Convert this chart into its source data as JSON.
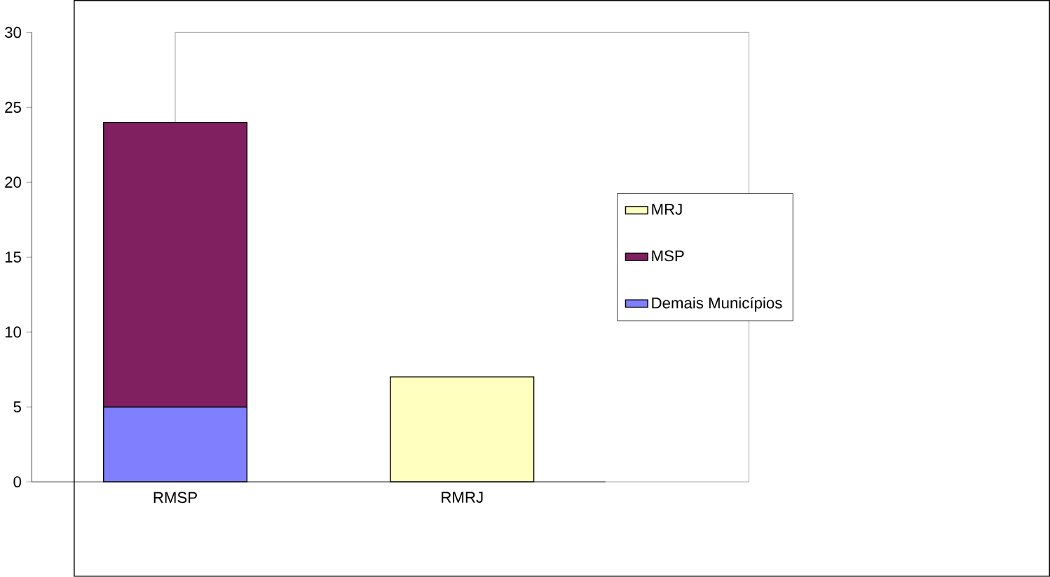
{
  "chart_data": {
    "type": "bar",
    "stacked": true,
    "categories": [
      "RMSP",
      "RMRJ"
    ],
    "series": [
      {
        "name": "Demais Municípios",
        "color": "#8080ff",
        "values": [
          5,
          null
        ]
      },
      {
        "name": "MSP",
        "color": "#802060",
        "values": [
          19,
          null
        ]
      },
      {
        "name": "MRJ",
        "color": "#ffffc0",
        "values": [
          null,
          7
        ]
      }
    ],
    "ylim": [
      0,
      30
    ],
    "yticks": [
      0,
      5,
      10,
      15,
      20,
      25,
      30
    ],
    "legend": "right"
  }
}
